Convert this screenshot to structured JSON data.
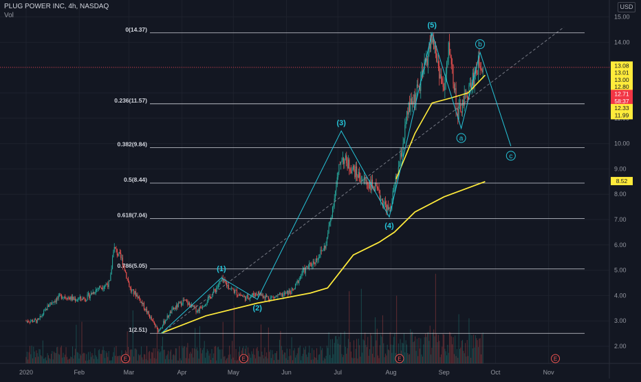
{
  "header": {
    "title": "PLUG POWER INC, 4h, NASDAQ",
    "volume_label": "Vol",
    "currency_badge": "USD"
  },
  "colors": {
    "background": "#131722",
    "grid": "#1e222d",
    "up": "#26a69a",
    "down": "#ef5350",
    "ma": "#ffeb3b",
    "wave": "#26c6da",
    "fib": "#d1d4dc",
    "trend_dashed": "#787b86",
    "price_marker": "#f23645"
  },
  "chart_data": {
    "type": "candlestick",
    "ylim": [
      1.4,
      15.5
    ],
    "y_ticks": [
      "15.00",
      "14.00",
      "13.00",
      "12.00",
      "11.00",
      "10.00",
      "9.00",
      "8.00",
      "7.00",
      "6.00",
      "5.00",
      "4.00",
      "3.00",
      "2.00"
    ],
    "x_ticks": [
      "2020",
      "Feb",
      "Mar",
      "Apr",
      "May",
      "Jun",
      "Jul",
      "Aug",
      "Sep",
      "Oct",
      "Nov"
    ],
    "price_path": [
      [
        "2020-01-01",
        3.0
      ],
      [
        "2020-01-08",
        3.0
      ],
      [
        "2020-01-15",
        3.7
      ],
      [
        "2020-01-22",
        4.0
      ],
      [
        "2020-01-29",
        3.85
      ],
      [
        "2020-02-05",
        3.9
      ],
      [
        "2020-02-12",
        4.3
      ],
      [
        "2020-02-19",
        4.5
      ],
      [
        "2020-02-21",
        5.9
      ],
      [
        "2020-02-26",
        5.4
      ],
      [
        "2020-03-02",
        4.2
      ],
      [
        "2020-03-06",
        4.0
      ],
      [
        "2020-03-12",
        3.3
      ],
      [
        "2020-03-18",
        2.6
      ],
      [
        "2020-03-26",
        3.4
      ],
      [
        "2020-04-02",
        3.8
      ],
      [
        "2020-04-10",
        3.4
      ],
      [
        "2020-04-17",
        3.9
      ],
      [
        "2020-04-24",
        4.6
      ],
      [
        "2020-05-01",
        4.2
      ],
      [
        "2020-05-08",
        3.9
      ],
      [
        "2020-05-15",
        4.1
      ],
      [
        "2020-05-22",
        3.9
      ],
      [
        "2020-05-29",
        4.0
      ],
      [
        "2020-06-05",
        4.2
      ],
      [
        "2020-06-10",
        4.9
      ],
      [
        "2020-06-18",
        5.4
      ],
      [
        "2020-06-24",
        6.0
      ],
      [
        "2020-06-30",
        8.3
      ],
      [
        "2020-07-03",
        9.5
      ],
      [
        "2020-07-08",
        9.1
      ],
      [
        "2020-07-15",
        8.6
      ],
      [
        "2020-07-22",
        8.3
      ],
      [
        "2020-07-31",
        7.3
      ],
      [
        "2020-08-06",
        9.2
      ],
      [
        "2020-08-11",
        11.3
      ],
      [
        "2020-08-18",
        12.3
      ],
      [
        "2020-08-25",
        14.2
      ],
      [
        "2020-09-01",
        12.0
      ],
      [
        "2020-09-04",
        13.9
      ],
      [
        "2020-09-09",
        11.1
      ],
      [
        "2020-09-16",
        12.2
      ],
      [
        "2020-09-22",
        13.3
      ],
      [
        "2020-09-24",
        13.01
      ]
    ],
    "ma_long": [
      [
        "2020-03-20",
        2.52
      ],
      [
        "2020-04-15",
        3.2
      ],
      [
        "2020-05-15",
        3.7
      ],
      [
        "2020-06-15",
        4.1
      ],
      [
        "2020-06-25",
        4.3
      ],
      [
        "2020-07-10",
        5.6
      ],
      [
        "2020-07-25",
        6.1
      ],
      [
        "2020-08-03",
        6.5
      ],
      [
        "2020-08-15",
        7.3
      ],
      [
        "2020-09-01",
        7.9
      ],
      [
        "2020-09-25",
        8.5
      ]
    ],
    "ma_short": [
      [
        "2020-08-04",
        8.6
      ],
      [
        "2020-08-15",
        10.4
      ],
      [
        "2020-08-25",
        11.6
      ],
      [
        "2020-09-05",
        11.8
      ],
      [
        "2020-09-15",
        12.0
      ],
      [
        "2020-09-25",
        12.7
      ]
    ],
    "fib_levels": [
      {
        "ratio": "0",
        "price": 14.37,
        "label": "0(14.37)"
      },
      {
        "ratio": "0.236",
        "price": 11.57,
        "label": "0.236(11.57)"
      },
      {
        "ratio": "0.382",
        "price": 9.84,
        "label": "0.382(9.84)"
      },
      {
        "ratio": "0.5",
        "price": 8.44,
        "label": "0.5(8.44)"
      },
      {
        "ratio": "0.618",
        "price": 7.04,
        "label": "0.618(7.04)"
      },
      {
        "ratio": "0.786",
        "price": 5.05,
        "label": "0.786(5.05)"
      },
      {
        "ratio": "1",
        "price": 2.51,
        "label": "1(2.51)"
      }
    ],
    "wave_path": [
      [
        "2020-03-20",
        2.51
      ],
      [
        "2020-04-24",
        4.7
      ],
      [
        "2020-05-15",
        3.85
      ],
      [
        "2020-07-03",
        10.5
      ],
      [
        "2020-07-31",
        7.1
      ],
      [
        "2020-08-25",
        14.37
      ],
      [
        "2020-09-11",
        10.6
      ],
      [
        "2020-09-22",
        13.6
      ],
      [
        "2020-10-10",
        9.9
      ]
    ],
    "wave_labels": [
      {
        "text": "(1)",
        "date": "2020-04-24",
        "price": 4.75,
        "pos": "above"
      },
      {
        "text": "(2)",
        "date": "2020-05-15",
        "price": 3.85,
        "pos": "below"
      },
      {
        "text": "(3)",
        "date": "2020-07-03",
        "price": 10.5,
        "pos": "above"
      },
      {
        "text": "(4)",
        "date": "2020-07-31",
        "price": 7.1,
        "pos": "below"
      },
      {
        "text": "(5)",
        "date": "2020-08-25",
        "price": 14.37,
        "pos": "above"
      }
    ],
    "wave_circle_labels": [
      {
        "text": "a",
        "date": "2020-09-11",
        "price": 10.6,
        "pos": "below"
      },
      {
        "text": "b",
        "date": "2020-09-22",
        "price": 13.6,
        "pos": "above"
      },
      {
        "text": "c",
        "date": "2020-10-10",
        "price": 9.9,
        "pos": "below"
      }
    ],
    "trend_line": [
      [
        "2020-03-20",
        2.51
      ],
      [
        "2020-11-10",
        14.6
      ]
    ],
    "price_tags": [
      {
        "text": "13.08",
        "color": "#ffeb3b",
        "text_color": "#131722",
        "price": 13.08
      },
      {
        "text": "13.01",
        "color": "#ffeb3b",
        "text_color": "#131722",
        "price": 12.8
      },
      {
        "text": "13.00",
        "color": "#ffeb3b",
        "text_color": "#131722",
        "price": 12.52
      },
      {
        "text": "12.80",
        "color": "#ffeb3b",
        "text_color": "#131722",
        "price": 12.24
      },
      {
        "text": "12.71",
        "color": "#f23645",
        "text_color": "#ffffff",
        "price": 11.96
      },
      {
        "text": "58:37",
        "color": "#f23645",
        "text_color": "#ffffff",
        "price": 11.68
      },
      {
        "text": "12.33",
        "color": "#ffeb3b",
        "text_color": "#131722",
        "price": 11.4
      },
      {
        "text": "11.99",
        "color": "#ffeb3b",
        "text_color": "#131722",
        "price": 11.12
      },
      {
        "text": "8.52",
        "color": "#ffeb3b",
        "text_color": "#131722",
        "price": 8.52
      }
    ],
    "current_price": 13.01,
    "earnings_markers": [
      {
        "text": "E",
        "date": "2020-02-28"
      },
      {
        "text": "E",
        "date": "2020-05-07"
      },
      {
        "text": "E",
        "date": "2020-08-06"
      },
      {
        "text": "E",
        "date": "2020-11-05"
      }
    ]
  }
}
